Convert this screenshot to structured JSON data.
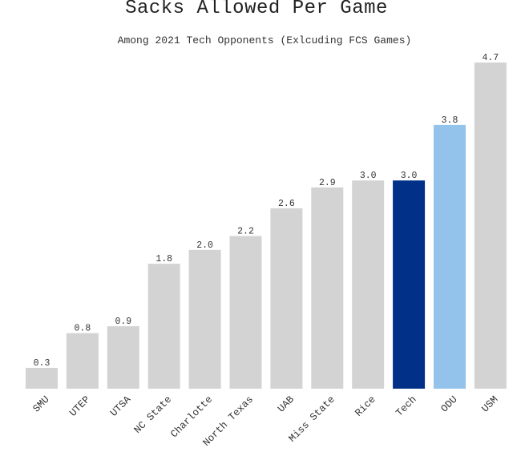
{
  "chart_data": {
    "type": "bar",
    "title": "Sacks Allowed Per Game",
    "subtitle": "Among 2021 Tech Opponents (Exlcuding FCS Games)",
    "xlabel": "",
    "ylabel": "",
    "categories": [
      "SMU",
      "UTEP",
      "UTSA",
      "NC State",
      "Charlotte",
      "North Texas",
      "UAB",
      "Miss State",
      "Rice",
      "Tech",
      "ODU",
      "USM"
    ],
    "values": [
      0.3,
      0.8,
      0.9,
      1.8,
      2.0,
      2.2,
      2.6,
      2.9,
      3.0,
      3.0,
      3.8,
      4.7
    ],
    "value_labels": [
      "0.3",
      "0.8",
      "0.9",
      "1.8",
      "2.0",
      "2.2",
      "2.6",
      "2.9",
      "3.0",
      "3.0",
      "3.8",
      "4.7"
    ],
    "bar_colors": [
      "#d3d3d3",
      "#d3d3d3",
      "#d3d3d3",
      "#d3d3d3",
      "#d3d3d3",
      "#d3d3d3",
      "#d3d3d3",
      "#d3d3d3",
      "#d3d3d3",
      "#003087",
      "#93c2ea",
      "#d3d3d3"
    ],
    "ylim": [
      0,
      4.7
    ],
    "grid": false,
    "legend": "none"
  }
}
